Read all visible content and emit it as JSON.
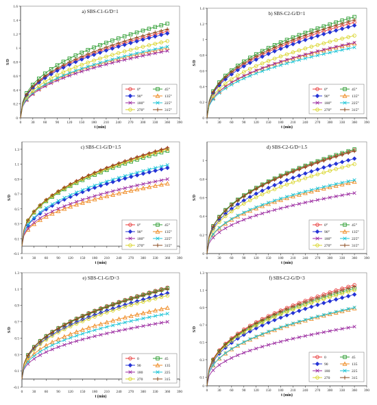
{
  "chart_data": [
    {
      "type": "line",
      "title": "a) SBS-C1-G/D=1",
      "xlabel": "t (min)",
      "ylabel": "S/D",
      "xlim": [
        0,
        390
      ],
      "ylim": [
        0,
        1.6
      ],
      "xticks": [
        0,
        30,
        60,
        90,
        120,
        150,
        180,
        210,
        240,
        270,
        300,
        330,
        360,
        390
      ],
      "yticks": [
        0,
        0.2,
        0.4,
        0.6,
        0.8,
        1,
        1.2,
        1.4,
        1.6
      ],
      "ytick_labels": [
        "0",
        "0.2",
        "0.4",
        "0.6",
        "0.8",
        "1",
        "1.2",
        "1.4",
        "1.6"
      ],
      "legend": [
        "0°",
        "45°",
        "90°",
        "135°",
        "180°",
        "225°",
        "270°",
        "315°"
      ],
      "legend_position": "bottom-right",
      "final_values": [
        1.24,
        1.35,
        1.21,
        1.0,
        0.96,
        1.02,
        1.1,
        1.27
      ]
    },
    {
      "type": "line",
      "title": "b) SBS-C2-G/D=1",
      "xlabel": "t (min)",
      "ylabel": "S/D",
      "xlim": [
        0,
        390
      ],
      "ylim": [
        0,
        1.4
      ],
      "xticks": [
        0,
        30,
        60,
        90,
        120,
        150,
        180,
        210,
        240,
        270,
        300,
        330,
        360,
        390
      ],
      "yticks": [
        0,
        0.2,
        0.4,
        0.6,
        0.8,
        1,
        1.2,
        1.4
      ],
      "ytick_labels": [
        "0",
        "0.2",
        "0.4",
        "0.6",
        "0.8",
        "1",
        "1.2",
        "1.4"
      ],
      "legend": [
        "0°",
        "45°",
        "90°",
        "135°",
        "180°",
        "225°",
        "270°",
        "315°"
      ],
      "legend_position": "bottom-right",
      "final_values": [
        1.22,
        1.29,
        1.18,
        0.95,
        0.96,
        0.9,
        1.05,
        1.25
      ]
    },
    {
      "type": "line",
      "title": "c) SBS-C1-G/D=1.5",
      "xlabel": "t (min)",
      "ylabel": "S/D",
      "xlim": [
        0,
        390
      ],
      "ylim": [
        -0.1,
        1.4
      ],
      "xticks": [
        0,
        30,
        60,
        90,
        120,
        150,
        180,
        210,
        240,
        270,
        300,
        330,
        360,
        390
      ],
      "yticks": [
        -0.1,
        0.1,
        0.3,
        0.5,
        0.7,
        0.9,
        1.1,
        1.3
      ],
      "ytick_labels": [
        "-0.1",
        "0.1",
        "0.3",
        "0.5",
        "0.7",
        "0.9",
        "1.1",
        "1.3"
      ],
      "legend": [
        "0°",
        "45°",
        "90°",
        "135°",
        "180°",
        "225°",
        "270°",
        "315°"
      ],
      "legend_position": "bottom-right",
      "final_values": [
        1.31,
        1.28,
        1.05,
        0.84,
        0.9,
        1.09,
        1.3,
        1.32
      ]
    },
    {
      "type": "line",
      "title": "d) SBS-C2-G/D=1.5",
      "xlabel": "t (min)",
      "ylabel": "S/D",
      "xlim": [
        0,
        390
      ],
      "ylim": [
        0,
        1.2
      ],
      "xticks": [
        0,
        30,
        60,
        90,
        120,
        150,
        180,
        210,
        240,
        270,
        300,
        330,
        360,
        390
      ],
      "yticks": [
        0,
        0.2,
        0.4,
        0.6,
        0.8,
        1
      ],
      "ytick_labels": [
        "0",
        "0.2",
        "0.4",
        "0.6",
        "0.8",
        "1"
      ],
      "legend": [
        "0°",
        "45°",
        "90°",
        "135°",
        "180°",
        "225°",
        "270°",
        "315°"
      ],
      "legend_position": "bottom-right",
      "final_values": [
        1.11,
        1.12,
        1.02,
        0.77,
        0.65,
        0.79,
        0.96,
        1.1
      ]
    },
    {
      "type": "line",
      "title": "e) SBS-C1-G/D=3",
      "xlabel": "t (min)",
      "ylabel": "S/D",
      "xlim": [
        0,
        390
      ],
      "ylim": [
        -0.1,
        1.3
      ],
      "xticks": [
        0,
        30,
        60,
        90,
        120,
        150,
        180,
        210,
        240,
        270,
        300,
        330,
        360,
        390
      ],
      "yticks": [
        -0.1,
        0.1,
        0.3,
        0.5,
        0.7,
        0.9,
        1.1,
        1.3
      ],
      "ytick_labels": [
        "-0.1",
        "0.1",
        "0.3",
        "0.5",
        "0.7",
        "0.9",
        "1.1",
        "1.3"
      ],
      "legend": [
        "0",
        "45",
        "90",
        "135",
        "180",
        "225",
        "270",
        "315"
      ],
      "legend_position": "bottom-right",
      "final_values": [
        1.12,
        1.11,
        1.05,
        0.87,
        0.7,
        0.8,
        1.02,
        1.1
      ]
    },
    {
      "type": "line",
      "title": "f) SBS-C2-G/D=3",
      "xlabel": "t (min)",
      "ylabel": "S/D",
      "xlim": [
        0,
        390
      ],
      "ylim": [
        0,
        1.3
      ],
      "xticks": [
        0,
        30,
        60,
        90,
        120,
        150,
        180,
        210,
        240,
        270,
        300,
        330,
        360,
        390
      ],
      "yticks": [
        0,
        0.1,
        0.3,
        0.5,
        0.7,
        0.9,
        1.1,
        1.3
      ],
      "ytick_labels": [
        "0",
        "0.1",
        "0.3",
        "0.5",
        "0.7",
        "0.9",
        "1.1",
        "1.3"
      ],
      "legend": [
        "0",
        "45",
        "90",
        "135",
        "180",
        "225",
        "270",
        "315"
      ],
      "legend_position": "bottom-right",
      "final_values": [
        1.16,
        1.12,
        1.05,
        0.89,
        0.68,
        0.9,
        1.1,
        1.14
      ]
    }
  ],
  "series_style": [
    {
      "color": "#e83a3a",
      "marker": "circle"
    },
    {
      "color": "#2f9e33",
      "marker": "square"
    },
    {
      "color": "#2433d6",
      "marker": "diamond"
    },
    {
      "color": "#ef8a22",
      "marker": "triangle"
    },
    {
      "color": "#9b2aa0",
      "marker": "x"
    },
    {
      "color": "#1cc4d6",
      "marker": "x"
    },
    {
      "color": "#d9d52a",
      "marker": "circle"
    },
    {
      "color": "#8a4a1c",
      "marker": "plus"
    }
  ]
}
